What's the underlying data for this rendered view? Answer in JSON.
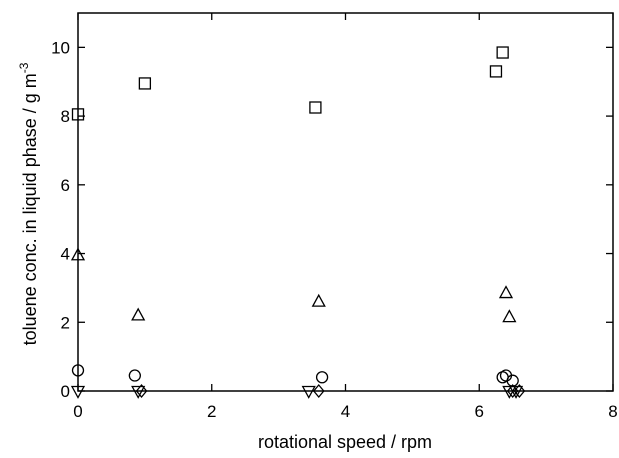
{
  "chart_data": {
    "type": "scatter",
    "title": "",
    "xlabel": "rotational speed / rpm",
    "ylabel": "toluene conc. in liquid phase / g m",
    "ylabel_superscript": "-3",
    "xlim": [
      0,
      8
    ],
    "ylim": [
      0,
      11
    ],
    "xticks": [
      0,
      2,
      4,
      6,
      8
    ],
    "yticks": [
      0,
      2,
      4,
      6,
      8,
      10
    ],
    "grid": false,
    "legend": "none",
    "series": [
      {
        "marker": "square",
        "points": [
          [
            0,
            8.05
          ],
          [
            1.0,
            8.95
          ],
          [
            3.55,
            8.25
          ],
          [
            6.25,
            9.3
          ],
          [
            6.35,
            9.85
          ]
        ]
      },
      {
        "marker": "triangle-up",
        "points": [
          [
            0,
            3.95
          ],
          [
            0.9,
            2.2
          ],
          [
            3.6,
            2.6
          ],
          [
            6.4,
            2.85
          ],
          [
            6.45,
            2.15
          ]
        ]
      },
      {
        "marker": "circle",
        "points": [
          [
            0,
            0.6
          ],
          [
            0.85,
            0.45
          ],
          [
            3.65,
            0.4
          ],
          [
            6.35,
            0.4
          ],
          [
            6.4,
            0.45
          ],
          [
            6.5,
            0.3
          ]
        ]
      },
      {
        "marker": "triangle-down",
        "points": [
          [
            0,
            0.0
          ],
          [
            0.9,
            0.0
          ],
          [
            3.45,
            0.0
          ],
          [
            6.45,
            0.0
          ],
          [
            6.55,
            0.0
          ]
        ]
      },
      {
        "marker": "diamond",
        "points": [
          [
            0.95,
            0.0
          ],
          [
            3.6,
            0.0
          ],
          [
            6.5,
            0.0
          ],
          [
            6.6,
            0.0
          ]
        ]
      }
    ]
  }
}
